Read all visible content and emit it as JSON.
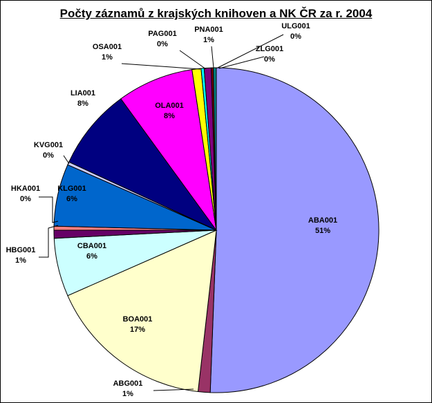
{
  "chart_data": {
    "type": "pie",
    "title": "Počty záznamů z krajských knihoven a NK ČR za r. 2004",
    "slices": [
      {
        "name": "ABA001",
        "value": 50.6,
        "label": "51%",
        "color": "#9999ff"
      },
      {
        "name": "ABG001",
        "value": 1.2,
        "label": "1%",
        "color": "#993366"
      },
      {
        "name": "BOA001",
        "value": 16.6,
        "label": "17%",
        "color": "#ffffcc"
      },
      {
        "name": "CBA001",
        "value": 5.8,
        "label": "6%",
        "color": "#ccffff"
      },
      {
        "name": "HBG001",
        "value": 0.8,
        "label": "1%",
        "color": "#660066"
      },
      {
        "name": "HKA001",
        "value": 0.4,
        "label": "0%",
        "color": "#ff8080"
      },
      {
        "name": "KLG001",
        "value": 6.2,
        "label": "6%",
        "color": "#0066cc"
      },
      {
        "name": "KVG001",
        "value": 0.3,
        "label": "0%",
        "color": "#ccccff"
      },
      {
        "name": "LIA001",
        "value": 8.1,
        "label": "8%",
        "color": "#000080"
      },
      {
        "name": "OLA001",
        "value": 7.6,
        "label": "8%",
        "color": "#ff00ff"
      },
      {
        "name": "OSA001",
        "value": 0.9,
        "label": "1%",
        "color": "#ffff00"
      },
      {
        "name": "PAG001",
        "value": 0.3,
        "label": "0%",
        "color": "#00ffff"
      },
      {
        "name": "PNA001",
        "value": 0.7,
        "label": "1%",
        "color": "#800080"
      },
      {
        "name": "ULG001",
        "value": 0.2,
        "label": "0%",
        "color": "#800000"
      },
      {
        "name": "ZLG001",
        "value": 0.3,
        "label": "0%",
        "color": "#008080"
      }
    ]
  }
}
